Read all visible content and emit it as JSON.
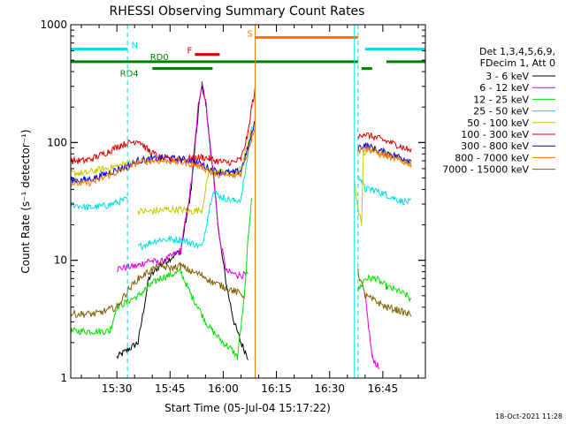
{
  "chart_data": {
    "type": "line",
    "title": "RHESSI Observing Summary Count Rates",
    "xlabel": "Start Time (05-Jul-04 15:17:22)",
    "ylabel": "Count Rate (s⁻¹ detector⁻¹)",
    "x_start_minutes": 17,
    "x_end_minutes": 117,
    "x_ticks": [
      "15:30",
      "15:45",
      "16:00",
      "16:15",
      "16:30",
      "16:45"
    ],
    "y_scale": "log",
    "y_range": [
      1,
      1000
    ],
    "y_ticks": [
      "1",
      "10",
      "100",
      "1000"
    ],
    "legend_header": [
      "Det 1,3,4,5,6,9,",
      "FDecim 1, Att 0"
    ],
    "series": [
      {
        "name": "3 - 6 keV",
        "color": "#000000",
        "points": [
          [
            17,
            null
          ],
          [
            30,
            1.5
          ],
          [
            36,
            2
          ],
          [
            39,
            7
          ],
          [
            42,
            9
          ],
          [
            48,
            12
          ],
          [
            51,
            40
          ],
          [
            53,
            190
          ],
          [
            54,
            310
          ],
          [
            55,
            220
          ],
          [
            57,
            60
          ],
          [
            59,
            15
          ],
          [
            61,
            6
          ],
          [
            63,
            3
          ],
          [
            65,
            2
          ],
          [
            67,
            1.5
          ],
          [
            70,
            null
          ],
          [
            97,
            null
          ],
          [
            99,
            null
          ],
          [
            117,
            null
          ]
        ]
      },
      {
        "name": "6 - 12 keV",
        "color": "#e000e0",
        "points": [
          [
            30,
            null
          ],
          [
            30,
            8.5
          ],
          [
            36,
            9
          ],
          [
            39,
            10
          ],
          [
            42,
            9.5
          ],
          [
            48,
            12
          ],
          [
            51,
            45
          ],
          [
            53,
            210
          ],
          [
            54,
            330
          ],
          [
            55,
            230
          ],
          [
            57,
            60
          ],
          [
            59,
            15
          ],
          [
            61,
            8
          ],
          [
            64,
            7.5
          ],
          [
            67,
            7.5
          ],
          [
            70,
            null
          ],
          [
            99,
            null
          ],
          [
            100,
            5
          ],
          [
            102,
            1.5
          ],
          [
            104,
            1.2
          ],
          [
            105,
            null
          ]
        ]
      },
      {
        "name": "12 - 25 keV",
        "color": "#00e000",
        "points": [
          [
            17,
            2.5
          ],
          [
            28,
            2.5
          ],
          [
            30,
            4
          ],
          [
            36,
            5
          ],
          [
            39,
            6
          ],
          [
            42,
            7
          ],
          [
            48,
            8
          ],
          [
            51,
            5
          ],
          [
            53,
            4
          ],
          [
            55,
            3
          ],
          [
            57,
            2.5
          ],
          [
            60,
            2
          ],
          [
            62,
            1.8
          ],
          [
            64,
            1.5
          ],
          [
            66,
            5
          ],
          [
            67,
            15
          ],
          [
            68,
            35
          ],
          [
            70,
            null
          ],
          [
            98,
            null
          ],
          [
            98,
            5.5
          ],
          [
            100,
            7
          ],
          [
            103,
            7
          ],
          [
            106,
            6
          ],
          [
            109,
            5.5
          ],
          [
            112,
            5
          ],
          [
            113,
            4.5
          ]
        ]
      },
      {
        "name": "25 - 50 keV",
        "color": "#00e0e0",
        "points": [
          [
            17,
            30
          ],
          [
            22,
            28
          ],
          [
            27,
            29
          ],
          [
            30,
            31
          ],
          [
            33,
            33
          ],
          [
            36,
            null
          ],
          [
            36,
            13
          ],
          [
            39,
            14
          ],
          [
            42,
            15
          ],
          [
            45,
            15
          ],
          [
            48,
            15
          ],
          [
            51,
            14
          ],
          [
            54,
            13
          ],
          [
            57,
            38
          ],
          [
            60,
            34
          ],
          [
            63,
            32
          ],
          [
            65,
            33
          ],
          [
            67,
            80
          ],
          [
            68,
            130
          ],
          [
            70,
            null
          ],
          [
            98,
            null
          ],
          [
            98,
            55
          ],
          [
            100,
            40
          ],
          [
            102,
            40
          ],
          [
            104,
            38
          ],
          [
            106,
            36
          ],
          [
            108,
            34
          ],
          [
            110,
            32
          ],
          [
            113,
            31
          ]
        ]
      },
      {
        "name": "50 - 100 keV",
        "color": "#c8c800",
        "points": [
          [
            17,
            55
          ],
          [
            21,
            55
          ],
          [
            24,
            58
          ],
          [
            27,
            60
          ],
          [
            30,
            63
          ],
          [
            34,
            68
          ],
          [
            36,
            null
          ],
          [
            36,
            26
          ],
          [
            40,
            26
          ],
          [
            44,
            27
          ],
          [
            48,
            27
          ],
          [
            51,
            26
          ],
          [
            54,
            27
          ],
          [
            56,
            58
          ],
          [
            58,
            56
          ],
          [
            60,
            55
          ],
          [
            63,
            55
          ],
          [
            65,
            60
          ],
          [
            67,
            100
          ],
          [
            69,
            160
          ],
          [
            70,
            null
          ],
          [
            97,
            null
          ],
          [
            97,
            45
          ],
          [
            98,
            27
          ],
          [
            99,
            20
          ],
          [
            99.5,
            80
          ],
          [
            101,
            90
          ],
          [
            103,
            85
          ],
          [
            105,
            82
          ],
          [
            107,
            78
          ],
          [
            109,
            75
          ],
          [
            111,
            70
          ],
          [
            113,
            65
          ]
        ]
      },
      {
        "name": "100 - 300 keV",
        "color": "#e00000",
        "points": [
          [
            17,
            70
          ],
          [
            21,
            70
          ],
          [
            24,
            75
          ],
          [
            28,
            85
          ],
          [
            31,
            95
          ],
          [
            34,
            100
          ],
          [
            36,
            105
          ],
          [
            39,
            85
          ],
          [
            42,
            75
          ],
          [
            45,
            72
          ],
          [
            48,
            72
          ],
          [
            51,
            73
          ],
          [
            54,
            75
          ],
          [
            56,
            73
          ],
          [
            58,
            70
          ],
          [
            60,
            68
          ],
          [
            63,
            68
          ],
          [
            65,
            72
          ],
          [
            67,
            120
          ],
          [
            68,
            200
          ],
          [
            69,
            280
          ],
          [
            70,
            null
          ],
          [
            98,
            null
          ],
          [
            98,
            110
          ],
          [
            99.5,
            120
          ],
          [
            101,
            115
          ],
          [
            103,
            110
          ],
          [
            105,
            105
          ],
          [
            107,
            100
          ],
          [
            109,
            95
          ],
          [
            111,
            90
          ],
          [
            113,
            85
          ]
        ]
      },
      {
        "name": "300 - 800 keV",
        "color": "#0000e0",
        "points": [
          [
            17,
            48
          ],
          [
            21,
            48
          ],
          [
            24,
            50
          ],
          [
            28,
            56
          ],
          [
            31,
            60
          ],
          [
            34,
            65
          ],
          [
            36,
            70
          ],
          [
            39,
            72
          ],
          [
            42,
            73
          ],
          [
            45,
            73
          ],
          [
            48,
            72
          ],
          [
            51,
            70
          ],
          [
            54,
            65
          ],
          [
            57,
            58
          ],
          [
            60,
            56
          ],
          [
            63,
            55
          ],
          [
            65,
            58
          ],
          [
            67,
            90
          ],
          [
            69,
            150
          ],
          [
            70,
            null
          ],
          [
            98,
            null
          ],
          [
            98,
            90
          ],
          [
            100,
            95
          ],
          [
            102,
            90
          ],
          [
            104,
            85
          ],
          [
            106,
            82
          ],
          [
            108,
            78
          ],
          [
            110,
            75
          ],
          [
            113,
            70
          ]
        ]
      },
      {
        "name": "800 - 7000 keV",
        "color": "#f07800",
        "points": [
          [
            17,
            45
          ],
          [
            21,
            45
          ],
          [
            24,
            47
          ],
          [
            28,
            53
          ],
          [
            31,
            58
          ],
          [
            34,
            63
          ],
          [
            36,
            68
          ],
          [
            39,
            70
          ],
          [
            42,
            70
          ],
          [
            45,
            70
          ],
          [
            48,
            68
          ],
          [
            51,
            66
          ],
          [
            54,
            62
          ],
          [
            57,
            55
          ],
          [
            60,
            53
          ],
          [
            63,
            52
          ],
          [
            65,
            55
          ],
          [
            67,
            85
          ],
          [
            69,
            140
          ],
          [
            70,
            null
          ],
          [
            98,
            null
          ],
          [
            98,
            85
          ],
          [
            100,
            90
          ],
          [
            102,
            86
          ],
          [
            104,
            80
          ],
          [
            106,
            77
          ],
          [
            108,
            73
          ],
          [
            110,
            70
          ],
          [
            113,
            66
          ]
        ]
      },
      {
        "name": "7000 - 15000 keV",
        "color": "#806000",
        "points": [
          [
            17,
            3.5
          ],
          [
            24,
            3.5
          ],
          [
            30,
            4
          ],
          [
            33,
            5.5
          ],
          [
            36,
            7
          ],
          [
            39,
            8
          ],
          [
            42,
            9
          ],
          [
            45,
            8.5
          ],
          [
            48,
            9
          ],
          [
            51,
            8
          ],
          [
            54,
            7.5
          ],
          [
            57,
            6.5
          ],
          [
            60,
            6
          ],
          [
            63,
            5.5
          ],
          [
            66,
            5
          ],
          [
            68,
            null
          ],
          [
            98,
            null
          ],
          [
            98,
            8
          ],
          [
            100,
            5
          ],
          [
            103,
            4.5
          ],
          [
            106,
            4
          ],
          [
            109,
            3.8
          ],
          [
            112,
            3.5
          ],
          [
            113,
            3.5
          ]
        ]
      }
    ],
    "flag_bars": [
      {
        "label": "N",
        "color": "#00e0e0",
        "segments": [
          [
            17,
            33
          ],
          [
            100,
            117
          ]
        ],
        "level": 620
      },
      {
        "label": "F",
        "color": "#e00000",
        "segments": [
          [
            52,
            59
          ]
        ],
        "level": 560
      },
      {
        "label": "S",
        "color": "#f07800",
        "segments": [
          [
            69,
            98
          ]
        ],
        "level": 780
      },
      {
        "label": "RD0",
        "color": "#008000",
        "segments": [
          [
            17,
            98
          ],
          [
            106,
            117
          ]
        ],
        "level": 485
      },
      {
        "label": "RD4",
        "color": "#008000",
        "segments": [
          [
            40,
            57
          ],
          [
            99,
            102
          ]
        ],
        "level": 425
      }
    ],
    "vertical_markers": [
      {
        "x": 17,
        "color": "#00e0e0",
        "style": "solid"
      },
      {
        "x": 33,
        "color": "#00e0e0",
        "style": "dashed"
      },
      {
        "x": 69,
        "color": "#f07800",
        "style": "solid"
      },
      {
        "x": 97,
        "color": "#00e0e0",
        "style": "solid"
      },
      {
        "x": 98,
        "color": "#00e0e0",
        "style": "dashed"
      },
      {
        "x": 117,
        "color": "#00e0e0",
        "style": "dashed"
      }
    ],
    "timestamp": "18-Oct-2021 11:28"
  }
}
